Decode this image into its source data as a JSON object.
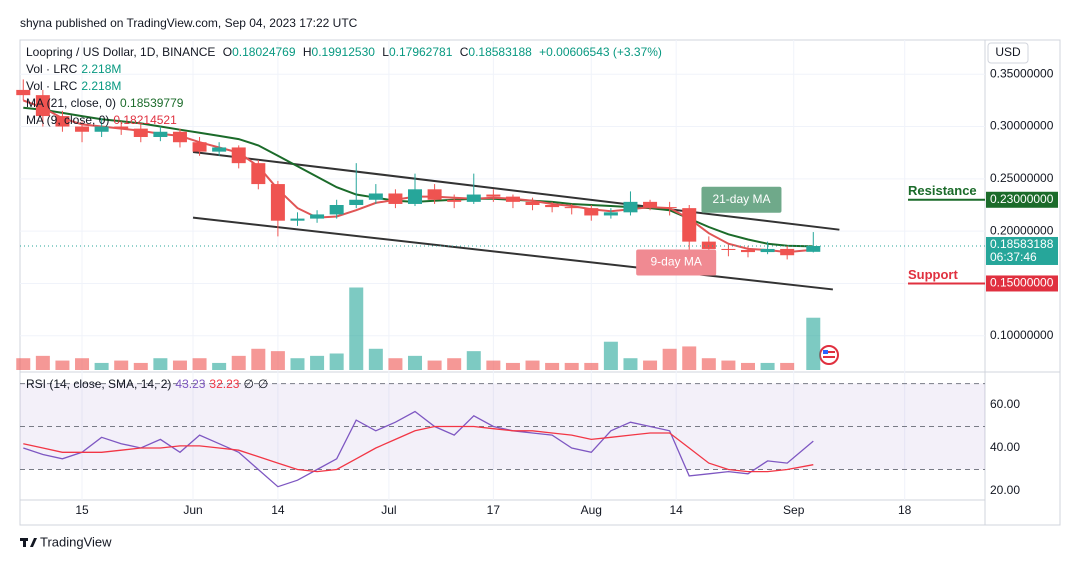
{
  "header": {
    "published": "shyna published on TradingView.com, Sep 04, 2023 17:22 UTC",
    "currency": "USD"
  },
  "footer": {
    "brand": "TradingView"
  },
  "legend": {
    "symbol": "Loopring / US Dollar, 1D, BINANCE",
    "o_label": "O",
    "open": "0.18024769",
    "h_label": "H",
    "high": "0.19912530",
    "l_label": "L",
    "low": "0.17962781",
    "c_label": "C",
    "close": "0.18583188",
    "change": "+0.00606543 (+3.37%)",
    "vol1_name": "Vol · LRC",
    "vol1_value": "2.218M",
    "vol2_name": "Vol · LRC",
    "vol2_value": "2.218M",
    "ma21_name": "MA (21, close, 0)",
    "ma21_value": "0.18539779",
    "ma9_name": "MA (9, close, 0)",
    "ma9_value": "0.18214521",
    "rsi_name": "RSI (14, close, SMA, 14, 2)",
    "rsi_value": "43.23",
    "rsi_ma_value": "32.23",
    "rsi_extra1": "∅",
    "rsi_extra2": "∅"
  },
  "chart_data": [
    {
      "type": "candlestick",
      "title": "Loopring / US Dollar, 1D, BINANCE",
      "x": [
        5,
        8,
        11,
        14,
        17,
        20,
        23,
        26,
        29,
        32,
        35,
        38,
        41,
        44,
        47,
        50,
        53,
        56,
        59,
        62,
        65,
        68,
        71,
        74,
        77,
        80,
        83,
        86,
        89,
        92,
        95,
        98,
        101,
        104,
        107,
        110,
        113,
        116,
        119,
        122,
        126
      ],
      "open": [
        0.335,
        0.33,
        0.31,
        0.3,
        0.295,
        0.3,
        0.298,
        0.29,
        0.295,
        0.285,
        0.276,
        0.28,
        0.265,
        0.245,
        0.21,
        0.212,
        0.216,
        0.225,
        0.23,
        0.236,
        0.226,
        0.24,
        0.23,
        0.228,
        0.235,
        0.233,
        0.228,
        0.225,
        0.223,
        0.222,
        0.215,
        0.218,
        0.228,
        0.223,
        0.222,
        0.19,
        0.183,
        0.182,
        0.18,
        0.183,
        0.18024769
      ],
      "high": [
        0.345,
        0.335,
        0.315,
        0.305,
        0.308,
        0.305,
        0.302,
        0.3,
        0.298,
        0.29,
        0.285,
        0.282,
        0.268,
        0.248,
        0.218,
        0.22,
        0.23,
        0.265,
        0.245,
        0.24,
        0.255,
        0.245,
        0.235,
        0.255,
        0.24,
        0.235,
        0.232,
        0.228,
        0.226,
        0.225,
        0.222,
        0.238,
        0.23,
        0.228,
        0.225,
        0.195,
        0.188,
        0.186,
        0.19,
        0.186,
        0.1991253
      ],
      "low": [
        0.325,
        0.3,
        0.295,
        0.285,
        0.29,
        0.292,
        0.285,
        0.286,
        0.28,
        0.272,
        0.272,
        0.26,
        0.24,
        0.195,
        0.205,
        0.208,
        0.212,
        0.222,
        0.226,
        0.222,
        0.224,
        0.226,
        0.222,
        0.226,
        0.228,
        0.222,
        0.22,
        0.218,
        0.216,
        0.21,
        0.212,
        0.215,
        0.22,
        0.215,
        0.178,
        0.178,
        0.176,
        0.175,
        0.178,
        0.173,
        0.17962781
      ],
      "close": [
        0.33,
        0.31,
        0.3,
        0.295,
        0.3,
        0.298,
        0.29,
        0.295,
        0.285,
        0.276,
        0.28,
        0.265,
        0.245,
        0.21,
        0.212,
        0.216,
        0.225,
        0.23,
        0.236,
        0.226,
        0.24,
        0.23,
        0.228,
        0.235,
        0.233,
        0.228,
        0.225,
        0.223,
        0.222,
        0.215,
        0.218,
        0.228,
        0.223,
        0.222,
        0.19,
        0.183,
        0.182,
        0.18,
        0.183,
        0.177,
        0.18583188
      ],
      "up_color": "#26a69a",
      "down_color": "#ef5350",
      "volume": [
        0.5,
        0.6,
        0.4,
        0.5,
        0.3,
        0.4,
        0.3,
        0.5,
        0.4,
        0.5,
        0.3,
        0.6,
        0.9,
        0.8,
        0.5,
        0.6,
        0.7,
        3.5,
        0.9,
        0.5,
        0.6,
        0.4,
        0.5,
        0.8,
        0.4,
        0.3,
        0.4,
        0.3,
        0.3,
        0.3,
        1.2,
        0.5,
        0.4,
        0.9,
        1.0,
        0.5,
        0.4,
        0.3,
        0.3,
        0.3,
        2.218
      ],
      "volume_ylim": [
        0,
        14
      ],
      "series": [
        {
          "name": "MA (21, close, 0)",
          "color": "#1b6b2a",
          "values": [
            0.318,
            0.316,
            0.313,
            0.31,
            0.307,
            0.305,
            0.303,
            0.3,
            0.297,
            0.294,
            0.291,
            0.288,
            0.282,
            0.272,
            0.262,
            0.252,
            0.242,
            0.235,
            0.232,
            0.229,
            0.228,
            0.229,
            0.23,
            0.231,
            0.231,
            0.23,
            0.229,
            0.228,
            0.226,
            0.225,
            0.224,
            0.223,
            0.222,
            0.22,
            0.212,
            0.204,
            0.197,
            0.192,
            0.188,
            0.186,
            0.18539779
          ]
        },
        {
          "name": "MA (9, close, 0)",
          "color": "#e05555",
          "values": [
            0.325,
            0.318,
            0.308,
            0.302,
            0.3,
            0.298,
            0.296,
            0.293,
            0.291,
            0.285,
            0.28,
            0.275,
            0.262,
            0.24,
            0.222,
            0.213,
            0.214,
            0.22,
            0.227,
            0.23,
            0.233,
            0.233,
            0.232,
            0.231,
            0.232,
            0.231,
            0.229,
            0.226,
            0.224,
            0.221,
            0.219,
            0.221,
            0.223,
            0.222,
            0.212,
            0.198,
            0.188,
            0.183,
            0.182,
            0.18,
            0.18214521
          ]
        }
      ],
      "trendlines": [
        {
          "x": [
            31,
            130
          ],
          "y": [
            0.2757,
            0.2014
          ]
        },
        {
          "x": [
            31,
            129
          ],
          "y": [
            0.2129,
            0.1443
          ]
        }
      ],
      "xlim": [
        4.5,
        152.3
      ],
      "xticks": [
        {
          "value": 14,
          "label": "15"
        },
        {
          "value": 31,
          "label": "Jun"
        },
        {
          "value": 44,
          "label": "14"
        },
        {
          "value": 61,
          "label": "Jul"
        },
        {
          "value": 77,
          "label": "17"
        },
        {
          "value": 92,
          "label": "Aug"
        },
        {
          "value": 105,
          "label": "14"
        },
        {
          "value": 123,
          "label": "Sep"
        },
        {
          "value": 140,
          "label": "18"
        }
      ],
      "ylim": [
        0.0673,
        0.3827
      ],
      "yticks": [
        {
          "value": 0.1,
          "label": "0.10000000"
        },
        {
          "value": 0.15,
          "label": "0.15000000"
        },
        {
          "value": 0.2,
          "label": "0.20000000"
        },
        {
          "value": 0.25,
          "label": "0.25000000"
        },
        {
          "value": 0.3,
          "label": "0.30000000"
        },
        {
          "value": 0.35,
          "label": "0.35000000"
        }
      ],
      "levels": [
        {
          "text": "Resistance",
          "value": 0.23,
          "label": "0.23000000",
          "color": "#1b6b2a"
        },
        {
          "text": "Support",
          "value": 0.15,
          "label": "0.15000000",
          "color": "#e0303f"
        }
      ],
      "last_price": {
        "value": 0.18583188,
        "label": "0.18583188",
        "countdown": "06:37:46",
        "color": "#26a69a"
      },
      "annotations": [
        {
          "text": "21-day MA",
          "x": 115,
          "y": 0.23,
          "color": "#6fa98a"
        },
        {
          "text": "9-day MA",
          "x": 105,
          "y": 0.17,
          "color": "#f08a92"
        }
      ]
    },
    {
      "type": "line",
      "title": "RSI (14, close, SMA, 14, 2)",
      "x": [
        5,
        8,
        11,
        14,
        17,
        20,
        23,
        26,
        29,
        32,
        35,
        38,
        41,
        44,
        47,
        50,
        53,
        56,
        59,
        62,
        65,
        68,
        71,
        74,
        77,
        80,
        83,
        86,
        89,
        92,
        95,
        98,
        101,
        104,
        107,
        110,
        113,
        116,
        119,
        122,
        126
      ],
      "series": [
        {
          "name": "RSI",
          "color": "#7e57c2",
          "values": [
            40,
            37,
            35,
            38,
            45,
            42,
            40,
            44,
            38,
            46,
            42,
            38,
            30,
            22,
            25,
            30,
            35,
            53,
            48,
            52,
            57,
            50,
            46,
            55,
            50,
            48,
            47,
            46,
            40,
            38,
            48,
            52,
            50,
            48,
            27,
            28,
            29,
            28,
            34,
            33,
            43.23
          ]
        },
        {
          "name": "RSI-based MA",
          "color": "#f23645",
          "values": [
            42,
            40,
            38,
            38,
            38,
            39,
            40,
            40,
            41,
            41,
            40,
            39,
            36,
            33,
            30,
            29,
            30,
            35,
            40,
            44,
            48,
            50,
            50,
            50,
            49,
            48,
            48,
            47,
            46,
            44,
            45,
            46,
            47,
            47,
            40,
            33,
            30,
            29,
            29,
            30,
            32.23
          ]
        }
      ],
      "bands": [
        30,
        70
      ],
      "midline": 50,
      "xlim": [
        4.5,
        152.3
      ],
      "ylim": [
        15.8,
        72.6
      ],
      "yticks": [
        {
          "value": 20,
          "label": "20.00"
        },
        {
          "value": 40,
          "label": "40.00"
        },
        {
          "value": 60,
          "label": "60.00"
        }
      ]
    }
  ]
}
